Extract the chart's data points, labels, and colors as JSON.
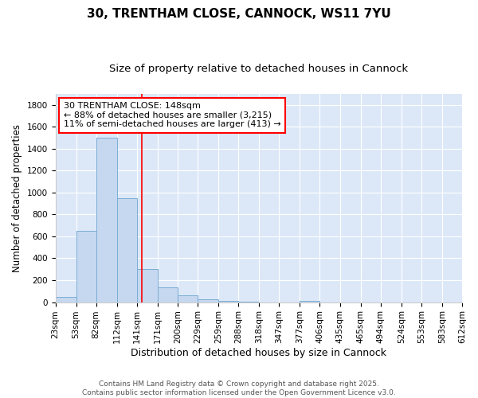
{
  "title": "30, TRENTHAM CLOSE, CANNOCK, WS11 7YU",
  "subtitle": "Size of property relative to detached houses in Cannock",
  "xlabel": "Distribution of detached houses by size in Cannock",
  "ylabel": "Number of detached properties",
  "bar_left_edges": [
    23,
    53,
    82,
    112,
    141,
    171,
    200,
    229,
    259,
    288,
    318,
    347,
    377,
    406,
    435,
    465,
    494,
    524,
    553,
    583
  ],
  "bar_heights": [
    50,
    650,
    1500,
    950,
    300,
    135,
    65,
    25,
    15,
    5,
    0,
    0,
    15,
    0,
    0,
    0,
    0,
    0,
    0,
    0
  ],
  "bar_widths": [
    30,
    29,
    30,
    29,
    30,
    29,
    29,
    30,
    29,
    30,
    29,
    30,
    29,
    29,
    30,
    29,
    30,
    29,
    30,
    29
  ],
  "xlim_min": 23,
  "xlim_max": 612,
  "ylim": [
    0,
    1900
  ],
  "yticks": [
    0,
    200,
    400,
    600,
    800,
    1000,
    1200,
    1400,
    1600,
    1800
  ],
  "xtick_labels": [
    "23sqm",
    "53sqm",
    "82sqm",
    "112sqm",
    "141sqm",
    "171sqm",
    "200sqm",
    "229sqm",
    "259sqm",
    "288sqm",
    "318sqm",
    "347sqm",
    "377sqm",
    "406sqm",
    "435sqm",
    "465sqm",
    "494sqm",
    "524sqm",
    "553sqm",
    "583sqm",
    "612sqm"
  ],
  "xtick_positions": [
    23,
    53,
    82,
    112,
    141,
    171,
    200,
    229,
    259,
    288,
    318,
    347,
    377,
    406,
    435,
    465,
    494,
    524,
    553,
    583,
    612
  ],
  "red_line_x": 148,
  "bar_color": "#c5d8f0",
  "bar_edge_color": "#7aadd4",
  "bg_color": "#dce8f8",
  "grid_color": "#ffffff",
  "annotation_line1": "30 TRENTHAM CLOSE: 148sqm",
  "annotation_line2": "← 88% of detached houses are smaller (3,215)",
  "annotation_line3": "11% of semi-detached houses are larger (413) →",
  "footer_line1": "Contains HM Land Registry data © Crown copyright and database right 2025.",
  "footer_line2": "Contains public sector information licensed under the Open Government Licence v3.0.",
  "title_fontsize": 11,
  "subtitle_fontsize": 9.5,
  "tick_fontsize": 7.5,
  "ylabel_fontsize": 8.5,
  "xlabel_fontsize": 9,
  "annotation_fontsize": 8,
  "footer_fontsize": 6.5
}
